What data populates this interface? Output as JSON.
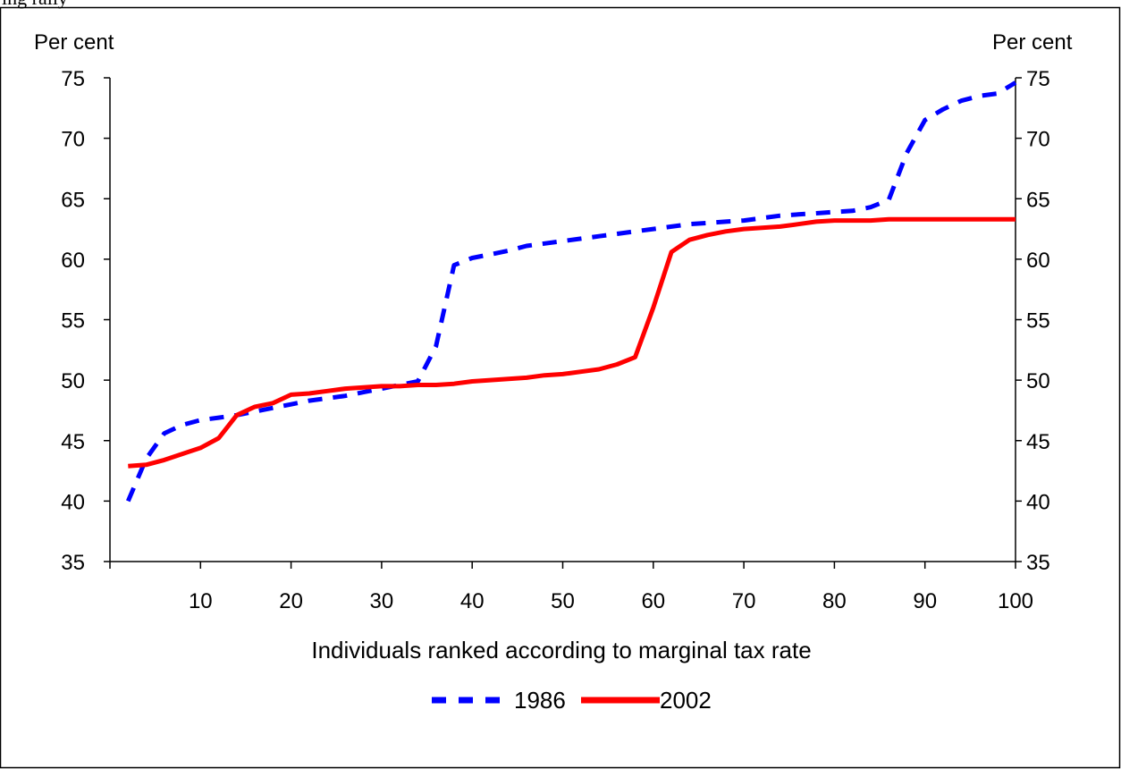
{
  "header_fragment": "ing rally",
  "chart_data": {
    "type": "line",
    "title": "",
    "xlabel": "Individuals ranked according to marginal tax rate",
    "ylabel_left": "Per cent",
    "ylabel_right": "Per cent",
    "xlim": [
      0,
      100
    ],
    "ylim": [
      35,
      75
    ],
    "x_ticks": [
      10,
      20,
      30,
      40,
      50,
      60,
      70,
      80,
      90,
      100
    ],
    "y_ticks": [
      35,
      40,
      45,
      50,
      55,
      60,
      65,
      70,
      75
    ],
    "grid": false,
    "legend_position": "bottom-center",
    "series": [
      {
        "name": "1986",
        "color": "#0000ff",
        "style": "dashed",
        "x": [
          2,
          4,
          6,
          8,
          10,
          12,
          14,
          16,
          18,
          20,
          22,
          24,
          26,
          28,
          30,
          32,
          34,
          36,
          38,
          40,
          42,
          44,
          46,
          48,
          50,
          52,
          54,
          56,
          58,
          60,
          62,
          64,
          66,
          68,
          70,
          72,
          74,
          76,
          78,
          80,
          82,
          84,
          86,
          88,
          90,
          92,
          94,
          96,
          98,
          100
        ],
        "values": [
          40.0,
          43.5,
          45.6,
          46.3,
          46.7,
          46.9,
          47.1,
          47.4,
          47.7,
          48.0,
          48.3,
          48.5,
          48.7,
          49.0,
          49.3,
          49.6,
          49.9,
          52.8,
          59.5,
          60.1,
          60.4,
          60.7,
          61.1,
          61.3,
          61.5,
          61.7,
          61.9,
          62.1,
          62.3,
          62.5,
          62.7,
          62.9,
          63.0,
          63.1,
          63.2,
          63.4,
          63.6,
          63.7,
          63.8,
          63.9,
          64.0,
          64.3,
          64.9,
          68.8,
          71.5,
          72.4,
          73.1,
          73.5,
          73.7,
          74.6
        ]
      },
      {
        "name": "2002",
        "color": "#ff0000",
        "style": "solid",
        "x": [
          2,
          4,
          6,
          8,
          10,
          12,
          14,
          16,
          18,
          20,
          22,
          24,
          26,
          28,
          30,
          32,
          34,
          36,
          38,
          40,
          42,
          44,
          46,
          48,
          50,
          52,
          54,
          56,
          58,
          60,
          62,
          64,
          66,
          68,
          70,
          72,
          74,
          76,
          78,
          80,
          82,
          84,
          86,
          88,
          90,
          92,
          94,
          96,
          98,
          100
        ],
        "values": [
          42.9,
          43.0,
          43.4,
          43.9,
          44.4,
          45.2,
          47.1,
          47.8,
          48.1,
          48.8,
          48.9,
          49.1,
          49.3,
          49.4,
          49.5,
          49.5,
          49.6,
          49.6,
          49.7,
          49.9,
          50.0,
          50.1,
          50.2,
          50.4,
          50.5,
          50.7,
          50.9,
          51.3,
          51.9,
          56.0,
          60.6,
          61.6,
          62.0,
          62.3,
          62.5,
          62.6,
          62.7,
          62.9,
          63.1,
          63.2,
          63.2,
          63.2,
          63.3,
          63.3,
          63.3,
          63.3,
          63.3,
          63.3,
          63.3,
          63.3
        ]
      }
    ]
  }
}
